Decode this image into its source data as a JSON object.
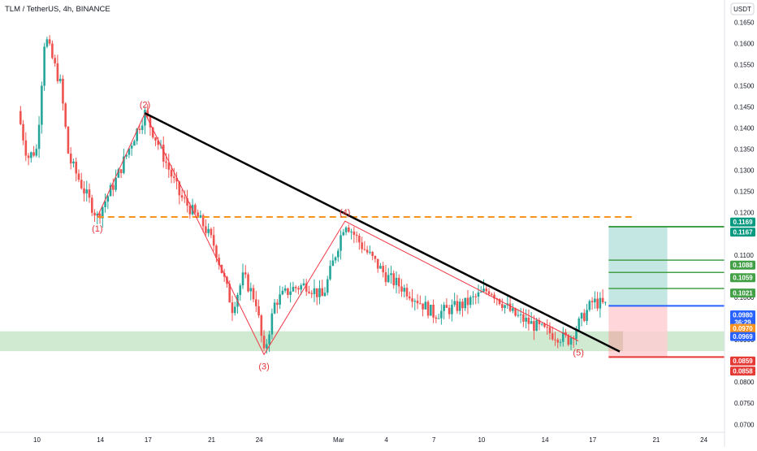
{
  "header": {
    "symbol_title": "TLM / TetherUS, 4h, BINANCE",
    "currency_button": "USDT"
  },
  "colors": {
    "up": "#26a69a",
    "down": "#ef5350",
    "trendline": "#000000",
    "wave_line": "#f23645",
    "wave_label": "#e2323a",
    "dashed_line": "#f7931e",
    "target_line": "#43a047",
    "stop_line": "#e53935",
    "entry_line": "#2962ff",
    "profit_zone": "#b2dfdb",
    "loss_zone": "#ffcdd2",
    "support_zone": "#c8e6c9"
  },
  "chart_data": {
    "type": "candlestick",
    "title": "TLM / TetherUS, 4h, BINANCE",
    "ylim": [
      0.0689,
      0.1687
    ],
    "y_ticks": [
      "0.1650",
      "0.1600",
      "0.1550",
      "0.1500",
      "0.1450",
      "0.1400",
      "0.1350",
      "0.1300",
      "0.1250",
      "0.1200",
      "0.1150",
      "0.1100",
      "0.1000",
      "0.0950",
      "0.0900",
      "0.0800",
      "0.0750",
      "0.0700"
    ],
    "x_ticks": [
      {
        "label": "10",
        "day": 0
      },
      {
        "label": "14",
        "day": 4
      },
      {
        "label": "17",
        "day": 7
      },
      {
        "label": "21",
        "day": 11
      },
      {
        "label": "24",
        "day": 14
      },
      {
        "label": "Mar",
        "day": 19
      },
      {
        "label": "4",
        "day": 22
      },
      {
        "label": "7",
        "day": 25
      },
      {
        "label": "10",
        "day": 28
      },
      {
        "label": "14",
        "day": 32
      },
      {
        "label": "17",
        "day": 35
      },
      {
        "label": "21",
        "day": 39
      },
      {
        "label": "24",
        "day": 42
      }
    ],
    "price_path": [
      {
        "day": -1.2,
        "price": 0.144
      },
      {
        "day": -0.6,
        "price": 0.133
      },
      {
        "day": 0.0,
        "price": 0.135
      },
      {
        "day": 0.5,
        "price": 0.162
      },
      {
        "day": 1.0,
        "price": 0.156
      },
      {
        "day": 1.5,
        "price": 0.15
      },
      {
        "day": 2.0,
        "price": 0.133
      },
      {
        "day": 3.0,
        "price": 0.125
      },
      {
        "day": 3.8,
        "price": 0.119
      },
      {
        "day": 5.0,
        "price": 0.128
      },
      {
        "day": 6.0,
        "price": 0.137
      },
      {
        "day": 6.8,
        "price": 0.1435
      },
      {
        "day": 8.0,
        "price": 0.133
      },
      {
        "day": 9.0,
        "price": 0.124
      },
      {
        "day": 10.5,
        "price": 0.117
      },
      {
        "day": 11.2,
        "price": 0.112
      },
      {
        "day": 12.3,
        "price": 0.0975
      },
      {
        "day": 13.0,
        "price": 0.105
      },
      {
        "day": 13.8,
        "price": 0.099
      },
      {
        "day": 14.3,
        "price": 0.0865
      },
      {
        "day": 15.0,
        "price": 0.099
      },
      {
        "day": 16.0,
        "price": 0.102
      },
      {
        "day": 17.0,
        "price": 0.103
      },
      {
        "day": 18.0,
        "price": 0.1
      },
      {
        "day": 19.4,
        "price": 0.118
      },
      {
        "day": 20.5,
        "price": 0.112
      },
      {
        "day": 22.0,
        "price": 0.105
      },
      {
        "day": 23.5,
        "price": 0.101
      },
      {
        "day": 25.0,
        "price": 0.096
      },
      {
        "day": 27.0,
        "price": 0.0985
      },
      {
        "day": 28.5,
        "price": 0.102
      },
      {
        "day": 30.0,
        "price": 0.096
      },
      {
        "day": 32.0,
        "price": 0.092
      },
      {
        "day": 33.5,
        "price": 0.09
      },
      {
        "day": 35.0,
        "price": 0.099
      },
      {
        "day": 35.9,
        "price": 0.098
      }
    ],
    "wave_points": [
      {
        "label": "(1)",
        "day": 3.8,
        "price": 0.119
      },
      {
        "label": "(2)",
        "day": 6.8,
        "price": 0.1435
      },
      {
        "label": "(3)",
        "day": 14.3,
        "price": 0.0865
      },
      {
        "label": "(4)",
        "day": 19.4,
        "price": 0.118
      },
      {
        "label": "(5)",
        "day": 34.1,
        "price": 0.0897
      }
    ],
    "trendline": [
      {
        "day": 6.8,
        "price": 0.1435
      },
      {
        "day": 36.7,
        "price": 0.0872
      }
    ],
    "dashed_level": {
      "price": 0.119,
      "from_day": 3.8,
      "to_day": 37.5
    },
    "support_zone": {
      "low": 0.0873,
      "high": 0.092
    },
    "position": {
      "entry": 0.098,
      "stop": 0.0859,
      "target": 0.1167,
      "from_day": 36.0,
      "to_day": 39.7,
      "take_profits": [
        0.1021,
        0.1059,
        0.1088
      ]
    },
    "price_tags": [
      {
        "text": "0.1169",
        "price": 0.1169,
        "color": "#089981"
      },
      {
        "text": "0.1167",
        "price": 0.1167,
        "color": "#089981"
      },
      {
        "text": "0.1088",
        "price": 0.1088,
        "color": "#43a047"
      },
      {
        "text": "0.1059",
        "price": 0.1059,
        "color": "#43a047"
      },
      {
        "text": "0.1021",
        "price": 0.1021,
        "color": "#43a047"
      },
      {
        "text": "0.0980",
        "price": 0.098,
        "color": "#2962ff",
        "sub": "36:29"
      },
      {
        "text": "0.0970",
        "price": 0.097,
        "color": "#f7931e"
      },
      {
        "text": "0.0969",
        "price": 0.0969,
        "color": "#2962ff"
      },
      {
        "text": "0.0859",
        "price": 0.0859,
        "color": "#e53935"
      },
      {
        "text": "0.0858",
        "price": 0.0858,
        "color": "#e53935"
      }
    ]
  }
}
